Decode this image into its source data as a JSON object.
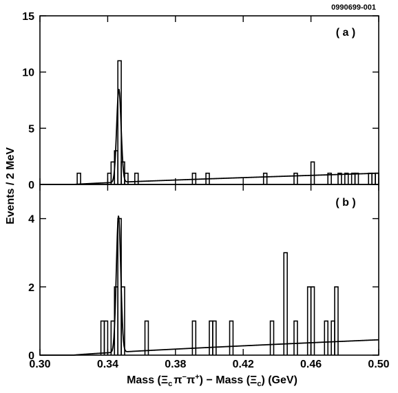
{
  "figure_id": "0990699-001",
  "chart_data": {
    "type": "histogram",
    "x_label_parts": {
      "prefix": "Mass (",
      "xi": "Ξ",
      "sub_c": "c",
      "pi": "π",
      "minus": "−",
      "plus": "+",
      "middle": ") − Mass (",
      "suffix": ") (GeV)"
    },
    "ylabel": "Events / 2 MeV",
    "xlim": [
      0.3,
      0.5
    ],
    "x_ticks": [
      0.3,
      0.34,
      0.38,
      0.42,
      0.46,
      0.5
    ],
    "x_tick_labels": [
      "0.30",
      "0.34",
      "0.38",
      "0.42",
      "0.46",
      "0.50"
    ],
    "bin_width": 0.002,
    "panels": [
      {
        "label": "( a )",
        "ylim": [
          0,
          15
        ],
        "y_ticks": [
          0,
          5,
          10,
          15
        ],
        "y_tick_labels": [
          "0",
          "5",
          "10",
          "15"
        ],
        "bins": [
          {
            "x": 0.322,
            "count": 1
          },
          {
            "x": 0.34,
            "count": 1
          },
          {
            "x": 0.342,
            "count": 2
          },
          {
            "x": 0.344,
            "count": 3
          },
          {
            "x": 0.346,
            "count": 11
          },
          {
            "x": 0.348,
            "count": 2
          },
          {
            "x": 0.35,
            "count": 1
          },
          {
            "x": 0.356,
            "count": 1
          },
          {
            "x": 0.39,
            "count": 1
          },
          {
            "x": 0.398,
            "count": 1
          },
          {
            "x": 0.432,
            "count": 1
          },
          {
            "x": 0.45,
            "count": 1
          },
          {
            "x": 0.46,
            "count": 2
          },
          {
            "x": 0.47,
            "count": 1
          },
          {
            "x": 0.476,
            "count": 1
          },
          {
            "x": 0.48,
            "count": 1
          },
          {
            "x": 0.484,
            "count": 1
          },
          {
            "x": 0.486,
            "count": 1
          },
          {
            "x": 0.494,
            "count": 1
          },
          {
            "x": 0.496,
            "count": 1
          },
          {
            "x": 0.498,
            "count": 1
          }
        ],
        "fit": {
          "peak_mean": 0.3466,
          "peak_sigma": 0.0013,
          "peak_amplitude": 8.3,
          "background_at_threshold": 0.0,
          "background_at_0_50": 1.0,
          "threshold": 0.32
        }
      },
      {
        "label": "( b )",
        "ylim": [
          0,
          5
        ],
        "y_ticks": [
          0,
          2,
          4
        ],
        "y_tick_labels": [
          "0",
          "2",
          "4"
        ],
        "bins": [
          {
            "x": 0.336,
            "count": 1
          },
          {
            "x": 0.338,
            "count": 1
          },
          {
            "x": 0.342,
            "count": 1
          },
          {
            "x": 0.344,
            "count": 2
          },
          {
            "x": 0.346,
            "count": 4
          },
          {
            "x": 0.348,
            "count": 2
          },
          {
            "x": 0.362,
            "count": 1
          },
          {
            "x": 0.39,
            "count": 1
          },
          {
            "x": 0.4,
            "count": 1
          },
          {
            "x": 0.402,
            "count": 1
          },
          {
            "x": 0.412,
            "count": 1
          },
          {
            "x": 0.436,
            "count": 1
          },
          {
            "x": 0.444,
            "count": 3
          },
          {
            "x": 0.45,
            "count": 1
          },
          {
            "x": 0.458,
            "count": 2
          },
          {
            "x": 0.46,
            "count": 2
          },
          {
            "x": 0.468,
            "count": 1
          },
          {
            "x": 0.472,
            "count": 1
          },
          {
            "x": 0.474,
            "count": 2
          }
        ],
        "fit": {
          "peak_mean": 0.3464,
          "peak_sigma": 0.0013,
          "peak_amplitude": 4.0,
          "background_at_threshold": 0.0,
          "background_at_0_50": 0.45,
          "threshold": 0.32
        }
      }
    ]
  }
}
